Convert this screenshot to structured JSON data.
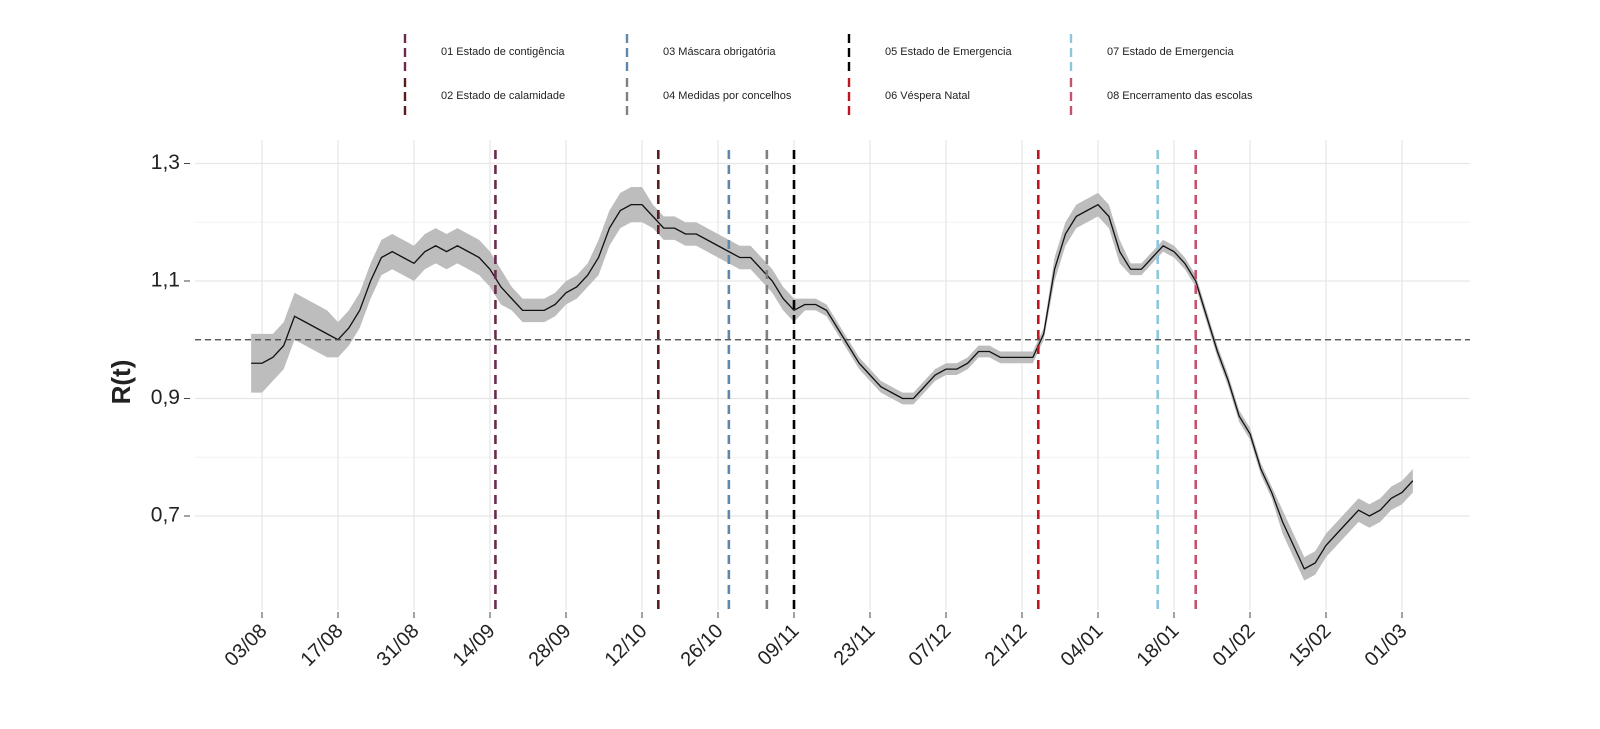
{
  "chart_data": {
    "type": "line",
    "y_label": "R(t)",
    "x": [
      "01/08",
      "03/08",
      "05/08",
      "07/08",
      "09/08",
      "11/08",
      "13/08",
      "15/08",
      "17/08",
      "19/08",
      "21/08",
      "23/08",
      "25/08",
      "27/08",
      "29/08",
      "31/08",
      "02/09",
      "04/09",
      "06/09",
      "08/09",
      "10/09",
      "12/09",
      "14/09",
      "16/09",
      "18/09",
      "20/09",
      "22/09",
      "24/09",
      "26/09",
      "28/09",
      "30/09",
      "02/10",
      "04/10",
      "06/10",
      "08/10",
      "10/10",
      "12/10",
      "14/10",
      "16/10",
      "18/10",
      "20/10",
      "22/10",
      "24/10",
      "26/10",
      "28/10",
      "30/10",
      "01/11",
      "03/11",
      "05/11",
      "07/11",
      "09/11",
      "11/11",
      "13/11",
      "15/11",
      "17/11",
      "19/11",
      "21/11",
      "23/11",
      "25/11",
      "27/11",
      "29/11",
      "01/12",
      "03/12",
      "05/12",
      "07/12",
      "09/12",
      "11/12",
      "13/12",
      "15/12",
      "17/12",
      "19/12",
      "21/12",
      "23/12",
      "25/12",
      "27/12",
      "29/12",
      "31/12",
      "02/01",
      "04/01",
      "06/01",
      "08/01",
      "10/01",
      "12/01",
      "14/01",
      "16/01",
      "18/01",
      "20/01",
      "22/01",
      "24/01",
      "26/01",
      "28/01",
      "30/01",
      "01/02",
      "03/02",
      "05/02",
      "07/02",
      "09/02",
      "11/02",
      "13/02",
      "15/02",
      "17/02",
      "19/02",
      "21/02",
      "23/02",
      "25/02",
      "27/02",
      "01/03",
      "03/03"
    ],
    "series": [
      {
        "name": "R(t)",
        "color": "#111111",
        "band_color": "#bdbdbd",
        "values": [
          0.96,
          0.96,
          0.97,
          0.99,
          1.04,
          1.03,
          1.02,
          1.01,
          1.0,
          1.02,
          1.05,
          1.1,
          1.14,
          1.15,
          1.14,
          1.13,
          1.15,
          1.16,
          1.15,
          1.16,
          1.15,
          1.14,
          1.12,
          1.09,
          1.07,
          1.05,
          1.05,
          1.05,
          1.06,
          1.08,
          1.09,
          1.11,
          1.14,
          1.19,
          1.22,
          1.23,
          1.23,
          1.21,
          1.19,
          1.19,
          1.18,
          1.18,
          1.17,
          1.16,
          1.15,
          1.14,
          1.14,
          1.12,
          1.1,
          1.07,
          1.05,
          1.06,
          1.06,
          1.05,
          1.02,
          0.99,
          0.96,
          0.94,
          0.92,
          0.91,
          0.9,
          0.9,
          0.92,
          0.94,
          0.95,
          0.95,
          0.96,
          0.98,
          0.98,
          0.97,
          0.97,
          0.97,
          0.97,
          1.01,
          1.12,
          1.18,
          1.21,
          1.22,
          1.23,
          1.21,
          1.15,
          1.12,
          1.12,
          1.14,
          1.16,
          1.15,
          1.13,
          1.1,
          1.04,
          0.98,
          0.93,
          0.87,
          0.84,
          0.78,
          0.74,
          0.69,
          0.65,
          0.61,
          0.62,
          0.65,
          0.67,
          0.69,
          0.71,
          0.7,
          0.71,
          0.73,
          0.74,
          0.76
        ],
        "error": [
          0.05,
          0.05,
          0.04,
          0.04,
          0.04,
          0.04,
          0.04,
          0.04,
          0.03,
          0.03,
          0.03,
          0.03,
          0.03,
          0.03,
          0.03,
          0.03,
          0.03,
          0.03,
          0.03,
          0.03,
          0.03,
          0.03,
          0.03,
          0.03,
          0.02,
          0.02,
          0.02,
          0.02,
          0.02,
          0.02,
          0.02,
          0.02,
          0.03,
          0.03,
          0.03,
          0.03,
          0.03,
          0.02,
          0.02,
          0.02,
          0.02,
          0.02,
          0.02,
          0.02,
          0.02,
          0.02,
          0.02,
          0.02,
          0.02,
          0.02,
          0.02,
          0.01,
          0.01,
          0.01,
          0.01,
          0.01,
          0.01,
          0.01,
          0.01,
          0.01,
          0.01,
          0.01,
          0.01,
          0.01,
          0.01,
          0.01,
          0.01,
          0.01,
          0.01,
          0.01,
          0.01,
          0.01,
          0.01,
          0.01,
          0.02,
          0.02,
          0.02,
          0.02,
          0.02,
          0.02,
          0.02,
          0.01,
          0.01,
          0.01,
          0.01,
          0.01,
          0.01,
          0.01,
          0.01,
          0.01,
          0.01,
          0.01,
          0.01,
          0.01,
          0.01,
          0.02,
          0.02,
          0.02,
          0.02,
          0.02,
          0.02,
          0.02,
          0.02,
          0.02,
          0.02,
          0.02,
          0.02,
          0.02
        ]
      }
    ],
    "events": [
      {
        "label": "01 Estado de contigência",
        "x": "15/09",
        "color": "#6b2a4e"
      },
      {
        "label": "02 Estado de calamidade",
        "x": "15/10",
        "color": "#5a1d1d"
      },
      {
        "label": "03 Máscara obrigatória",
        "x": "28/10",
        "color": "#5f87aa"
      },
      {
        "label": "04 Medidas por concelhos",
        "x": "04/11",
        "color": "#808080"
      },
      {
        "label": "05 Estado de Emergencia",
        "x": "09/11",
        "color": "#000000"
      },
      {
        "label": "06 Véspera Natal",
        "x": "24/12",
        "color": "#c0141e"
      },
      {
        "label": "07 Estado de Emergencia",
        "x": "15/01",
        "color": "#8ec7dd"
      },
      {
        "label": "08 Encerramento das escolas",
        "x": "22/01",
        "color": "#c4546e"
      }
    ],
    "reference_line": 1,
    "xticks": [
      "03/08",
      "17/08",
      "31/08",
      "14/09",
      "28/09",
      "12/10",
      "26/10",
      "09/11",
      "23/11",
      "07/12",
      "21/12",
      "04/01",
      "18/01",
      "01/02",
      "15/02",
      "01/03"
    ],
    "ylim": [
      0.54,
      1.34
    ],
    "yticks": [
      {
        "value": 0.7,
        "label": "0,7"
      },
      {
        "value": 0.9,
        "label": "0,9"
      },
      {
        "value": 1.1,
        "label": "1,1"
      },
      {
        "value": 1.3,
        "label": "1,3"
      }
    ],
    "minor_yticks": [
      0.8,
      1.0,
      1.2
    ],
    "grid": true
  }
}
